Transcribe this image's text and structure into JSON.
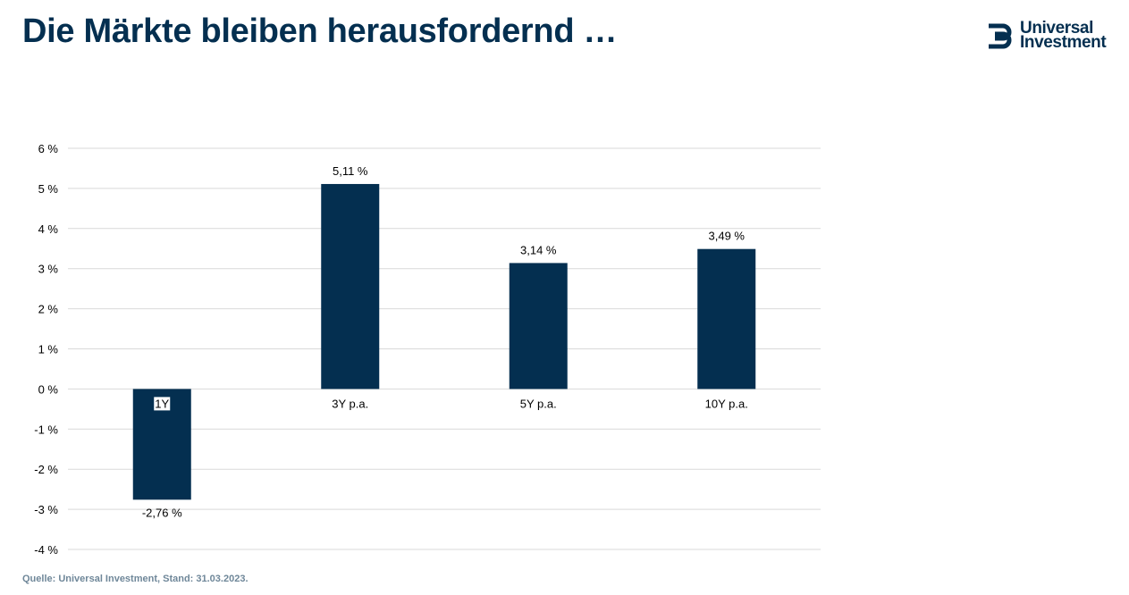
{
  "header": {
    "title": "Die Märkte bleiben herausfordernd …",
    "logo_line1": "Universal",
    "logo_line2": "Investment"
  },
  "footer": {
    "source": "Quelle: Universal Investment, Stand: 31.03.2023."
  },
  "colors": {
    "brand": "#042f50",
    "bar": "#042f50",
    "grid": "#d9d9d9",
    "text": "#000000",
    "source": "#6f8799"
  },
  "chart_data": {
    "type": "bar",
    "categories": [
      "1Y",
      "3Y p.a.",
      "5Y p.a.",
      "10Y p.a."
    ],
    "values": [
      -2.76,
      5.11,
      3.14,
      3.49
    ],
    "value_labels": [
      "-2,76 %",
      "5,11 %",
      "3,14 %",
      "3,49 %"
    ],
    "yticks": [
      -4,
      -3,
      -2,
      -1,
      0,
      1,
      2,
      3,
      4,
      5,
      6
    ],
    "ytick_labels": [
      "-4 %",
      "-3 %",
      "-2 %",
      "-1 %",
      "0 %",
      "1 %",
      "2 %",
      "3 %",
      "4 %",
      "5 %",
      "6 %"
    ],
    "ylim": [
      -4,
      6
    ],
    "title": "",
    "xlabel": "",
    "ylabel": "",
    "grid": true,
    "legend": "none"
  }
}
